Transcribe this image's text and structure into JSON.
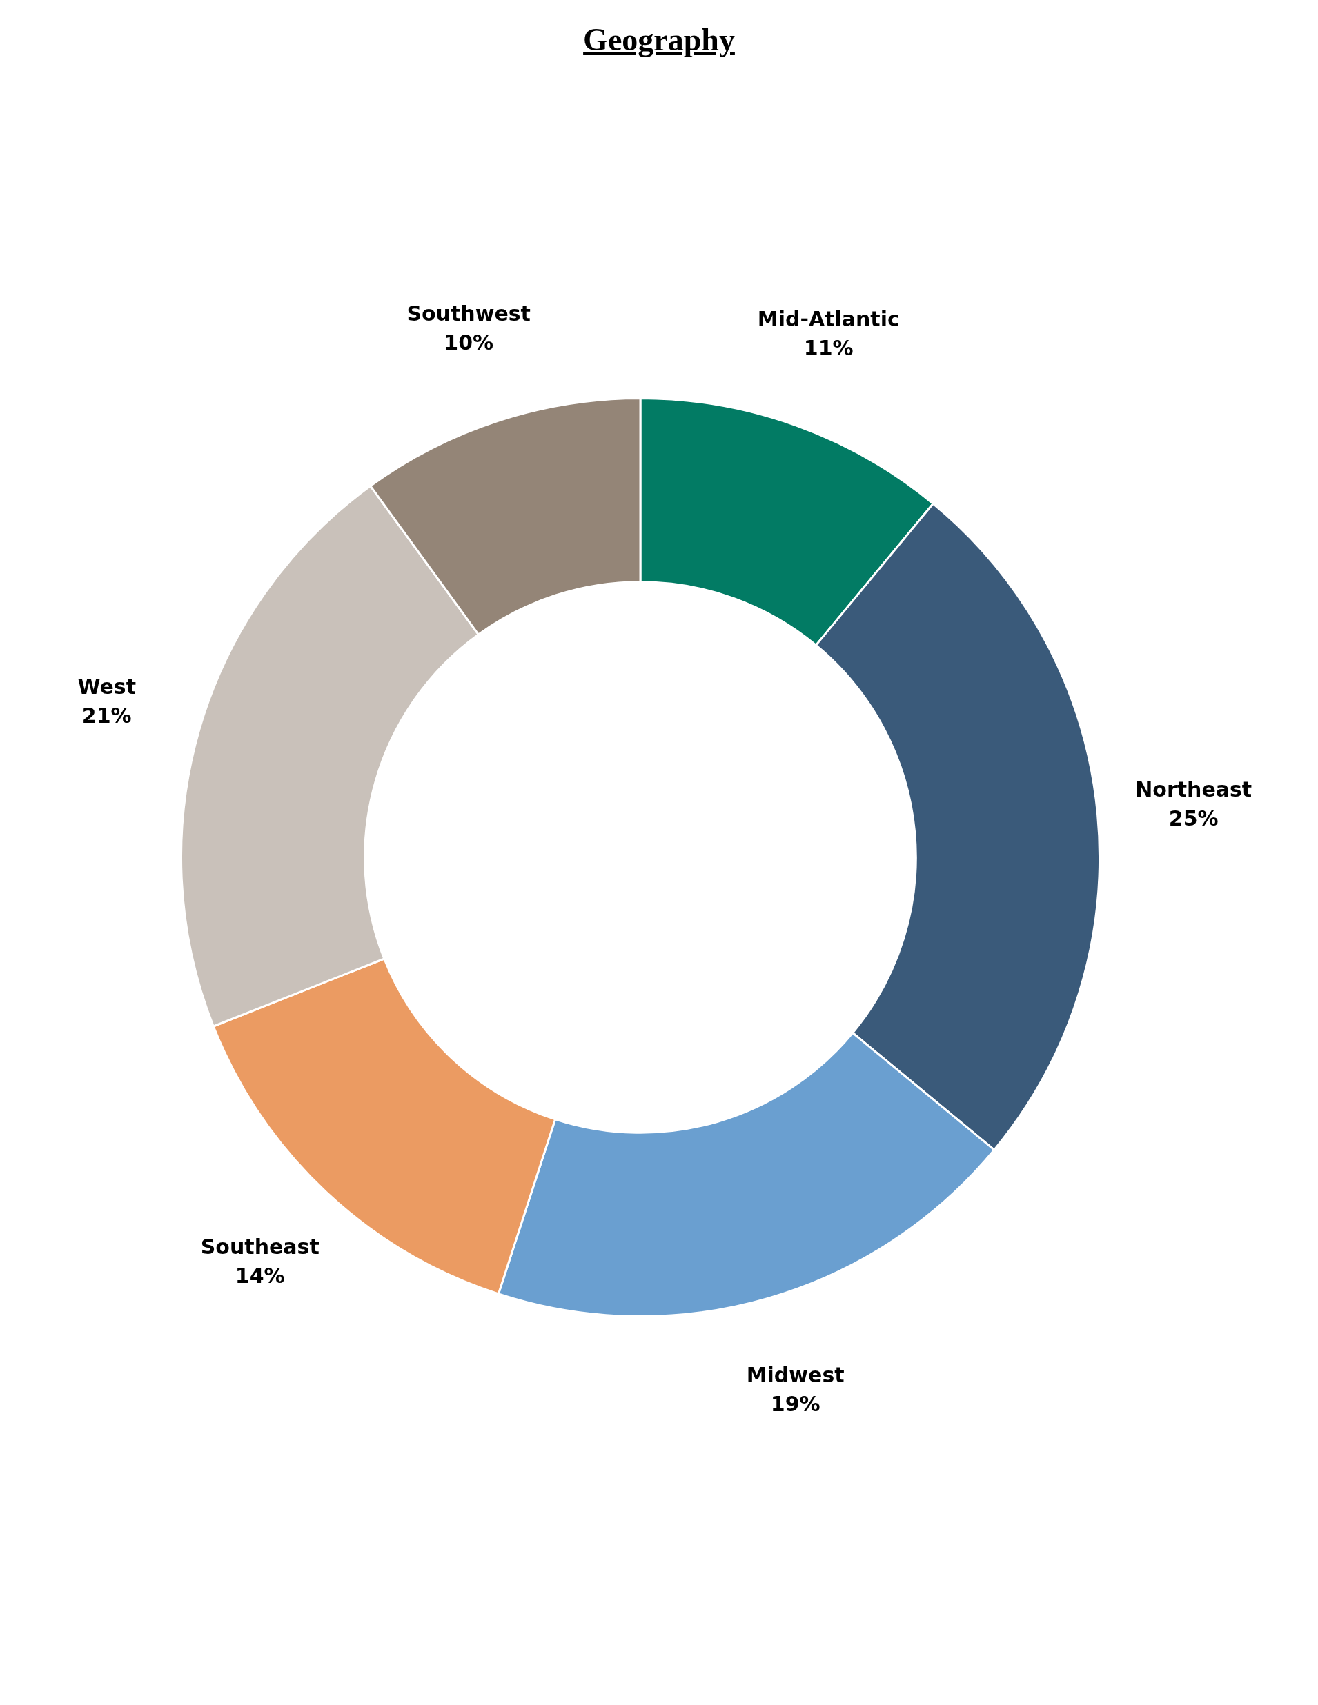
{
  "chart_data": {
    "type": "donut",
    "title": "Geography",
    "categories": [
      "Mid-Atlantic",
      "Northeast",
      "Midwest",
      "Southeast",
      "West",
      "Southwest"
    ],
    "values": [
      11,
      25,
      19,
      14,
      21,
      10
    ],
    "value_labels": [
      "11%",
      "25%",
      "19%",
      "14%",
      "21%",
      "10%"
    ],
    "colors": [
      "#027b64",
      "#3a5a7a",
      "#6a9fd0",
      "#eb9b62",
      "#c9c1ba",
      "#948577"
    ],
    "legend": false
  }
}
